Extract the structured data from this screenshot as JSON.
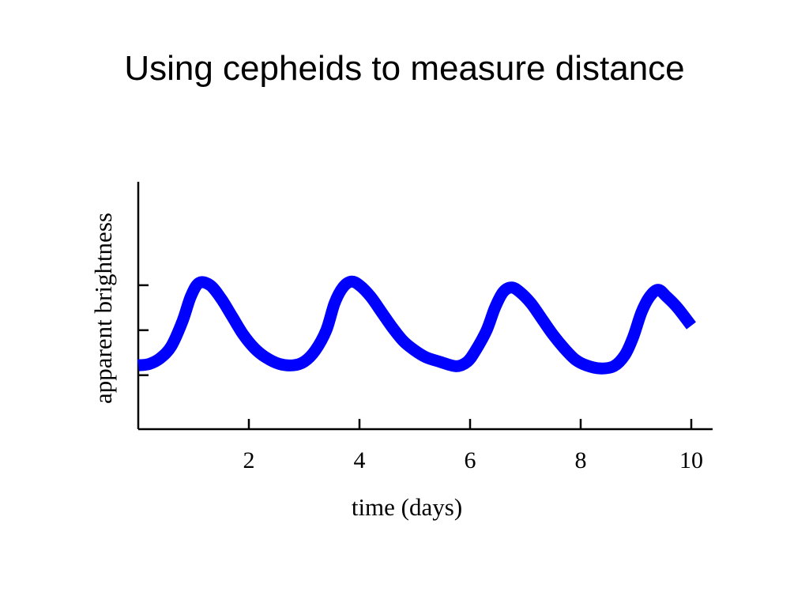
{
  "slide": {
    "title": "Using cepheids to measure distance"
  },
  "chart_data": {
    "type": "line",
    "title": "",
    "xlabel": "time (days)",
    "ylabel": "apparent brightness",
    "xlim": [
      0,
      10
    ],
    "xticks": [
      2,
      4,
      6,
      8,
      10
    ],
    "xtick_labels": [
      "2",
      "4",
      "6",
      "8",
      "10"
    ],
    "ylim": [
      0,
      5.5
    ],
    "yticks": [
      1.2,
      2.2,
      3.2
    ],
    "ytick_labels": [
      "",
      "",
      ""
    ],
    "grid": false,
    "legend": "none",
    "series": [
      {
        "color": "#0000ff",
        "x": [
          0,
          0.2,
          0.4,
          0.6,
          0.8,
          0.95,
          1.1,
          1.3,
          1.5,
          1.7,
          1.9,
          2.1,
          2.3,
          2.55,
          2.8,
          3.0,
          3.2,
          3.4,
          3.55,
          3.7,
          3.85,
          4.0,
          4.2,
          4.4,
          4.6,
          4.8,
          5.0,
          5.2,
          5.45,
          5.75,
          5.95,
          6.1,
          6.3,
          6.45,
          6.6,
          6.75,
          6.9,
          7.1,
          7.3,
          7.5,
          7.7,
          7.9,
          8.1,
          8.35,
          8.6,
          8.8,
          8.95,
          9.1,
          9.25,
          9.4,
          9.55,
          9.75,
          10.0
        ],
        "y": [
          1.42,
          1.45,
          1.58,
          1.85,
          2.4,
          2.95,
          3.25,
          3.2,
          2.9,
          2.5,
          2.1,
          1.8,
          1.6,
          1.45,
          1.42,
          1.5,
          1.75,
          2.2,
          2.8,
          3.15,
          3.28,
          3.2,
          2.95,
          2.6,
          2.25,
          1.95,
          1.75,
          1.6,
          1.5,
          1.4,
          1.5,
          1.75,
          2.2,
          2.7,
          3.05,
          3.15,
          3.05,
          2.8,
          2.45,
          2.1,
          1.8,
          1.55,
          1.42,
          1.35,
          1.4,
          1.65,
          2.05,
          2.6,
          2.95,
          3.1,
          2.95,
          2.7,
          2.3
        ]
      }
    ]
  }
}
